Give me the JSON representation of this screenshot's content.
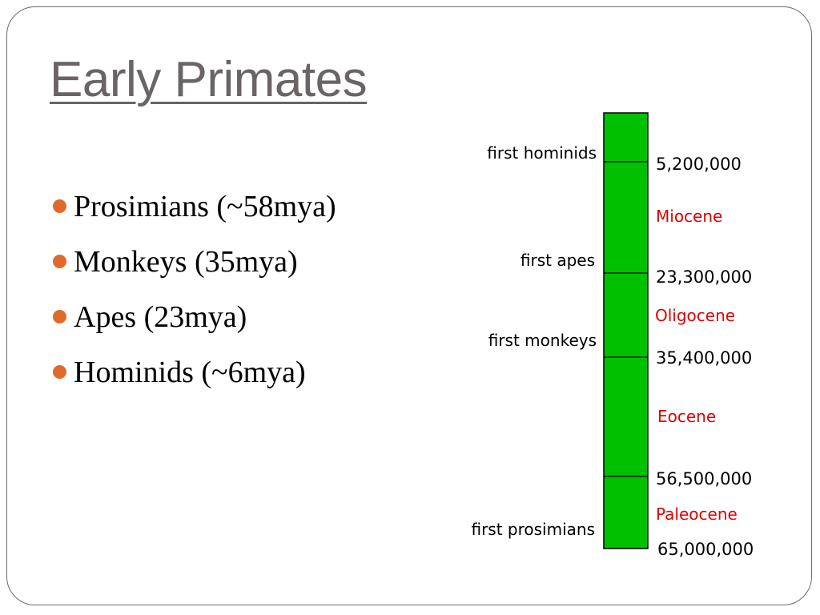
{
  "slide": {
    "title": "Early Primates",
    "bullets": [
      "Prosimians (~58mya)",
      "Monkeys (35mya)",
      "Apes (23mya)",
      "Hominids (~6mya)"
    ]
  },
  "timeline": {
    "bar_color": "#00c000",
    "epoch_color": "#e00000",
    "bullet_color": "#e06a2a",
    "title_color": "#6a6464",
    "events": [
      {
        "label": "first hominids"
      },
      {
        "label": "first apes"
      },
      {
        "label": "first monkeys"
      },
      {
        "label": "first prosimians"
      }
    ],
    "boundaries": [
      {
        "label": "5,200,000"
      },
      {
        "label": "23,300,000"
      },
      {
        "label": "35,400,000"
      },
      {
        "label": "56,500,000"
      },
      {
        "label": "65,000,000"
      }
    ],
    "epochs": [
      {
        "label": "Miocene"
      },
      {
        "label": "Oligocene"
      },
      {
        "label": "Eocene"
      },
      {
        "label": "Paleocene"
      }
    ]
  }
}
